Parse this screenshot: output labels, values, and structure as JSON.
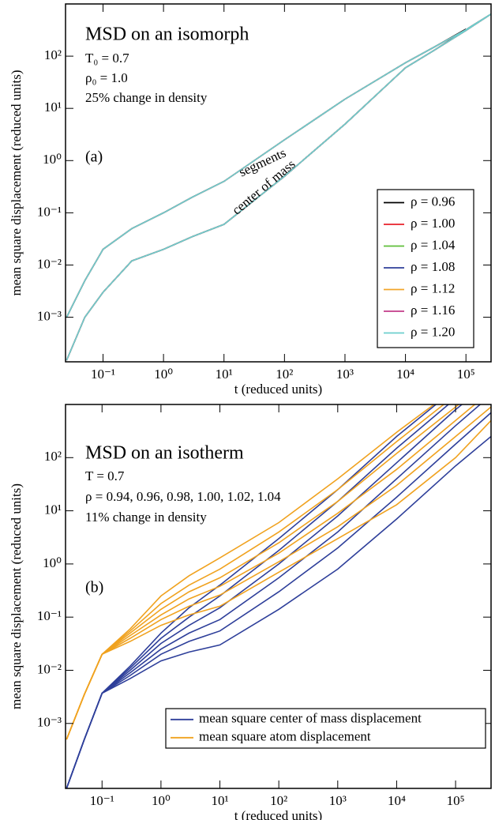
{
  "chart_data": [
    {
      "type": "line",
      "title": "MSD on an isomorph",
      "annotations": [
        "T₀ = 0.7",
        "ρ₀ = 1.0",
        "25% change in density"
      ],
      "panel_label": "(a)",
      "curve_labels": [
        "segments",
        "center of mass"
      ],
      "xlabel": "t  (reduced units)",
      "ylabel": "mean square displacement  (reduced units)",
      "log_x": true,
      "log_y": true,
      "xlim": [
        0.024,
        260000
      ],
      "ylim": [
        0.00014,
        1000
      ],
      "xticks": [
        {
          "value": 0.1,
          "label": "10⁻¹"
        },
        {
          "value": 1,
          "label": "10⁰"
        },
        {
          "value": 10,
          "label": "10¹"
        },
        {
          "value": 100,
          "label": "10²"
        },
        {
          "value": 1000,
          "label": "10³"
        },
        {
          "value": 10000,
          "label": "10⁴"
        },
        {
          "value": 100000,
          "label": "10⁵"
        }
      ],
      "yticks": [
        {
          "value": 0.001,
          "label": "10⁻³"
        },
        {
          "value": 0.01,
          "label": "10⁻²"
        },
        {
          "value": 0.1,
          "label": "10⁻¹"
        },
        {
          "value": 1,
          "label": "10⁰"
        },
        {
          "value": 10,
          "label": "10¹"
        },
        {
          "value": 100,
          "label": "10²"
        }
      ],
      "x": [
        0.025,
        0.05,
        0.1,
        0.3,
        1,
        3,
        10,
        100,
        1000,
        10000,
        30000,
        100000,
        130000,
        260000
      ],
      "series": [
        {
          "name": "ρ = 0.96",
          "color": "#000000",
          "curves": [
            [
              0.001,
              0.005,
              0.02,
              0.05,
              0.1,
              0.2,
              0.4,
              2.5,
              15,
              75,
              150,
              330,
              null,
              null
            ],
            [
              0.00015,
              0.001,
              0.003,
              0.012,
              0.02,
              0.035,
              0.06,
              0.5,
              5,
              60,
              130,
              320,
              null,
              null
            ]
          ]
        },
        {
          "name": "ρ = 1.00",
          "color": "#e8202a",
          "curves": [
            [
              0.001,
              0.005,
              0.02,
              0.05,
              0.1,
              0.2,
              0.4,
              2.5,
              15,
              75,
              150,
              320,
              390,
              640
            ],
            [
              0.00015,
              0.001,
              0.003,
              0.012,
              0.02,
              0.035,
              0.06,
              0.5,
              5,
              60,
              130,
              310,
              380,
              640
            ]
          ]
        },
        {
          "name": "ρ = 1.04",
          "color": "#5fbf3a",
          "curves": [
            [
              0.001,
              0.005,
              0.02,
              0.05,
              0.1,
              0.2,
              0.4,
              2.5,
              15,
              75,
              150,
              320,
              390,
              640
            ],
            [
              0.00015,
              0.001,
              0.003,
              0.012,
              0.02,
              0.035,
              0.06,
              0.5,
              5,
              60,
              130,
              310,
              380,
              640
            ]
          ]
        },
        {
          "name": "ρ = 1.08",
          "color": "#2f3f9a",
          "curves": [
            [
              0.001,
              0.005,
              0.02,
              0.05,
              0.1,
              0.2,
              0.4,
              2.5,
              15,
              75,
              150,
              320,
              390,
              640
            ],
            [
              0.00015,
              0.001,
              0.003,
              0.012,
              0.02,
              0.035,
              0.06,
              0.5,
              5,
              60,
              130,
              310,
              380,
              640
            ]
          ]
        },
        {
          "name": "ρ = 1.12",
          "color": "#f2a52a",
          "curves": [
            [
              0.001,
              0.005,
              0.02,
              0.05,
              0.1,
              0.2,
              0.4,
              2.5,
              15,
              75,
              150,
              320,
              390,
              640
            ],
            [
              0.00015,
              0.001,
              0.003,
              0.012,
              0.02,
              0.035,
              0.06,
              0.5,
              5,
              60,
              130,
              310,
              380,
              640
            ]
          ]
        },
        {
          "name": "ρ = 1.16",
          "color": "#c23b8a",
          "curves": [
            [
              0.001,
              0.005,
              0.02,
              0.05,
              0.1,
              0.2,
              0.4,
              2.5,
              15,
              75,
              150,
              320,
              390,
              640
            ],
            [
              0.00015,
              0.001,
              0.003,
              0.012,
              0.02,
              0.035,
              0.06,
              0.5,
              5,
              60,
              130,
              310,
              380,
              640
            ]
          ]
        },
        {
          "name": "ρ = 1.20",
          "color": "#6ccfce",
          "curves": [
            [
              0.001,
              0.005,
              0.02,
              0.05,
              0.1,
              0.2,
              0.4,
              2.5,
              15,
              75,
              150,
              320,
              390,
              640
            ],
            [
              0.00015,
              0.001,
              0.003,
              0.012,
              0.02,
              0.035,
              0.06,
              0.5,
              5,
              60,
              130,
              310,
              380,
              640
            ]
          ]
        }
      ]
    },
    {
      "type": "line",
      "title": "MSD on an isotherm",
      "annotations": [
        "T = 0.7",
        "ρ = 0.94, 0.96, 0.98, 1.00, 1.02, 1.04",
        "11% change in density"
      ],
      "panel_label": "(b)",
      "xlabel": "t  (reduced units)",
      "ylabel": "mean square displacement  (reduced units)",
      "log_x": true,
      "log_y": true,
      "xlim": [
        0.024,
        400000
      ],
      "ylim": [
        6e-05,
        1000
      ],
      "xticks": [
        {
          "value": 0.1,
          "label": "10⁻¹"
        },
        {
          "value": 1,
          "label": "10⁰"
        },
        {
          "value": 10,
          "label": "10¹"
        },
        {
          "value": 100,
          "label": "10²"
        },
        {
          "value": 1000,
          "label": "10³"
        },
        {
          "value": 10000,
          "label": "10⁴"
        },
        {
          "value": 100000,
          "label": "10⁵"
        }
      ],
      "yticks": [
        {
          "value": 0.001,
          "label": "10⁻³"
        },
        {
          "value": 0.01,
          "label": "10⁻²"
        },
        {
          "value": 0.1,
          "label": "10⁻¹"
        },
        {
          "value": 1,
          "label": "10⁰"
        },
        {
          "value": 10,
          "label": "10¹"
        },
        {
          "value": 100,
          "label": "10²"
        }
      ],
      "x": [
        0.025,
        0.05,
        0.1,
        0.3,
        1,
        3,
        10,
        100,
        1000,
        10000,
        100000,
        400000
      ],
      "series": [
        {
          "name": "mean square center of mass displacement",
          "color": "#2e3f9a",
          "curves": [
            [
              6e-05,
              0.0005,
              0.0037,
              0.012,
              0.05,
              0.15,
              0.4,
              3,
              25,
              250,
              2000,
              6000
            ],
            [
              6e-05,
              0.0005,
              0.0037,
              0.011,
              0.04,
              0.1,
              0.25,
              1.8,
              15,
              150,
              1300,
              4500
            ],
            [
              6e-05,
              0.0005,
              0.0037,
              0.01,
              0.032,
              0.07,
              0.15,
              1,
              8,
              80,
              800,
              2800
            ],
            [
              6e-05,
              0.0005,
              0.0037,
              0.009,
              0.025,
              0.05,
              0.09,
              0.55,
              4,
              40,
              400,
              1500
            ],
            [
              6e-05,
              0.0005,
              0.0037,
              0.008,
              0.02,
              0.035,
              0.055,
              0.3,
              2,
              18,
              180,
              700
            ],
            [
              6e-05,
              0.0005,
              0.0037,
              0.007,
              0.015,
              0.022,
              0.03,
              0.14,
              0.8,
              7,
              70,
              250
            ]
          ]
        },
        {
          "name": "mean square atom displacement",
          "color": "#f0a21f",
          "curves": [
            [
              0.0005,
              0.0035,
              0.02,
              0.06,
              0.25,
              0.6,
              1.3,
              6,
              40,
              300,
              2000,
              6000
            ],
            [
              0.0005,
              0.0035,
              0.02,
              0.055,
              0.18,
              0.4,
              0.8,
              4,
              25,
              200,
              1500,
              5000
            ],
            [
              0.0005,
              0.0035,
              0.02,
              0.05,
              0.14,
              0.3,
              0.55,
              2.5,
              15,
              120,
              900,
              3000
            ],
            [
              0.0005,
              0.0035,
              0.02,
              0.045,
              0.11,
              0.22,
              0.38,
              1.6,
              9,
              60,
              500,
              1800
            ],
            [
              0.0005,
              0.0035,
              0.02,
              0.04,
              0.09,
              0.16,
              0.26,
              1.1,
              5,
              30,
              250,
              900
            ],
            [
              0.0005,
              0.0035,
              0.02,
              0.035,
              0.07,
              0.11,
              0.16,
              0.7,
              3,
              13,
              100,
              500
            ]
          ]
        }
      ]
    }
  ]
}
